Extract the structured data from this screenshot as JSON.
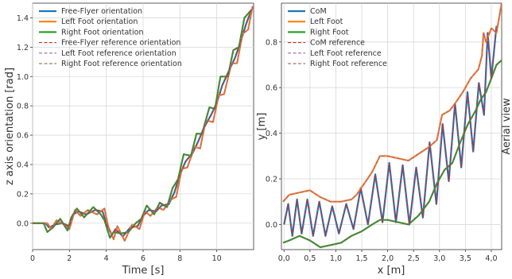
{
  "chart_data": [
    {
      "type": "line",
      "title": "",
      "xlabel": "Time [s]",
      "ylabel": "z axis orientation [rad]",
      "xlim": [
        0,
        12
      ],
      "ylim": [
        -0.18,
        1.5
      ],
      "xticks": [
        0,
        2,
        4,
        6,
        8,
        10
      ],
      "xtick_labels": [
        "0",
        "2",
        "4",
        "6",
        "8",
        "10"
      ],
      "yticks": [
        0.0,
        0.2,
        0.4,
        0.6,
        0.8,
        1.0,
        1.2,
        1.4
      ],
      "ytick_labels": [
        "0.0",
        "0.2",
        "0.4",
        "0.6",
        "0.8",
        "1.0",
        "1.2",
        "1.4"
      ],
      "grid": true,
      "legend": "top-left",
      "series": [
        {
          "name": "Free-Flyer orientation",
          "color": "#1f77b4",
          "dash": "solid",
          "x": [
            0,
            0.7,
            0.9,
            1.2,
            1.6,
            2.0,
            2.2,
            2.5,
            2.9,
            3.4,
            3.8,
            4.0,
            4.3,
            4.5,
            4.9,
            5.3,
            5.7,
            6.0,
            6.3,
            6.7,
            7.0,
            7.4,
            7.7,
            8.0,
            8.3,
            8.7,
            9.0,
            9.3,
            9.7,
            10.0,
            10.3,
            10.7,
            11.0,
            11.3,
            11.6,
            11.9
          ],
          "y": [
            0.0,
            0.0,
            -0.03,
            -0.01,
            0.0,
            -0.02,
            0.06,
            0.08,
            0.06,
            0.09,
            0.08,
            0.0,
            -0.08,
            -0.04,
            -0.09,
            -0.03,
            -0.02,
            0.05,
            0.09,
            0.08,
            0.12,
            0.13,
            0.21,
            0.33,
            0.42,
            0.48,
            0.56,
            0.65,
            0.74,
            0.82,
            0.94,
            1.05,
            1.13,
            1.24,
            1.36,
            1.46
          ]
        },
        {
          "name": "Left Foot orientation",
          "color": "#ff7f0e",
          "dash": "solid",
          "x": [
            0,
            0.8,
            1.0,
            1.3,
            1.7,
            2.0,
            2.3,
            2.6,
            3.0,
            3.5,
            3.9,
            4.1,
            4.4,
            4.6,
            5.0,
            5.4,
            5.8,
            6.1,
            6.4,
            6.8,
            7.1,
            7.5,
            7.8,
            8.1,
            8.4,
            8.8,
            9.1,
            9.4,
            9.8,
            10.1,
            10.4,
            10.8,
            11.1,
            11.4,
            11.7,
            11.95
          ],
          "y": [
            0.0,
            0.0,
            -0.04,
            0.02,
            -0.01,
            -0.04,
            0.09,
            0.05,
            0.09,
            0.06,
            0.1,
            -0.02,
            -0.11,
            -0.02,
            -0.12,
            -0.01,
            -0.04,
            0.08,
            0.05,
            0.11,
            0.09,
            0.16,
            0.18,
            0.37,
            0.38,
            0.52,
            0.51,
            0.7,
            0.69,
            0.87,
            0.88,
            1.09,
            1.09,
            1.29,
            1.32,
            1.48
          ]
        },
        {
          "name": "Right Foot orientation",
          "color": "#2ca02c",
          "dash": "solid",
          "x": [
            0,
            0.6,
            0.8,
            1.1,
            1.5,
            1.9,
            2.1,
            2.4,
            2.8,
            3.3,
            3.7,
            3.9,
            4.2,
            4.4,
            4.8,
            5.2,
            5.6,
            5.9,
            6.2,
            6.6,
            6.9,
            7.3,
            7.6,
            7.9,
            8.2,
            8.6,
            8.9,
            9.2,
            9.6,
            9.9,
            10.2,
            10.6,
            10.9,
            11.2,
            11.5,
            11.85
          ],
          "y": [
            0.0,
            0.0,
            -0.06,
            -0.03,
            0.03,
            -0.05,
            0.04,
            0.1,
            0.04,
            0.11,
            0.06,
            0.02,
            -0.1,
            -0.06,
            -0.07,
            -0.06,
            0.0,
            0.03,
            0.12,
            0.06,
            0.14,
            0.11,
            0.24,
            0.3,
            0.47,
            0.46,
            0.61,
            0.61,
            0.79,
            0.78,
            1.0,
            1.0,
            1.18,
            1.2,
            1.4,
            1.45
          ]
        },
        {
          "name": "Free-Flyer reference orientation",
          "color": "#d62728",
          "dash": "dashed",
          "x": [
            0,
            0.7,
            0.9,
            1.2,
            1.6,
            2.0,
            2.2,
            2.5,
            2.9,
            3.4,
            3.8,
            4.0,
            4.3,
            4.5,
            4.9,
            5.3,
            5.7,
            6.0,
            6.3,
            6.7,
            7.0,
            7.4,
            7.7,
            8.0,
            8.3,
            8.7,
            9.0,
            9.3,
            9.7,
            10.0,
            10.3,
            10.7,
            11.0,
            11.3,
            11.6,
            11.9
          ],
          "y": [
            0.0,
            0.0,
            -0.03,
            -0.01,
            0.0,
            -0.02,
            0.06,
            0.08,
            0.06,
            0.09,
            0.08,
            0.0,
            -0.08,
            -0.04,
            -0.09,
            -0.03,
            -0.02,
            0.05,
            0.09,
            0.08,
            0.12,
            0.13,
            0.21,
            0.33,
            0.42,
            0.48,
            0.56,
            0.65,
            0.74,
            0.82,
            0.94,
            1.05,
            1.13,
            1.24,
            1.36,
            1.46
          ]
        },
        {
          "name": "Left Foot reference orientation",
          "color": "#9467bd",
          "dash": "dashed",
          "x": [
            0,
            0.8,
            1.0,
            1.3,
            1.7,
            2.0,
            2.3,
            2.6,
            3.0,
            3.5,
            3.9,
            4.1,
            4.4,
            4.6,
            5.0,
            5.4,
            5.8,
            6.1,
            6.4,
            6.8,
            7.1,
            7.5,
            7.8,
            8.1,
            8.4,
            8.8,
            9.1,
            9.4,
            9.8,
            10.1,
            10.4,
            10.8,
            11.1,
            11.4,
            11.7,
            11.95
          ],
          "y": [
            0.0,
            0.0,
            -0.04,
            0.02,
            -0.01,
            -0.04,
            0.09,
            0.05,
            0.09,
            0.06,
            0.1,
            -0.02,
            -0.11,
            -0.02,
            -0.12,
            -0.01,
            -0.04,
            0.08,
            0.05,
            0.11,
            0.09,
            0.16,
            0.18,
            0.37,
            0.38,
            0.52,
            0.51,
            0.7,
            0.69,
            0.87,
            0.88,
            1.09,
            1.09,
            1.29,
            1.32,
            1.48
          ]
        },
        {
          "name": "Right Foot reference orientation",
          "color": "#8c564b",
          "dash": "dashed",
          "x": [
            0,
            0.6,
            0.8,
            1.1,
            1.5,
            1.9,
            2.1,
            2.4,
            2.8,
            3.3,
            3.7,
            3.9,
            4.2,
            4.4,
            4.8,
            5.2,
            5.6,
            5.9,
            6.2,
            6.6,
            6.9,
            7.3,
            7.6,
            7.9,
            8.2,
            8.6,
            8.9,
            9.2,
            9.6,
            9.9,
            10.2,
            10.6,
            10.9,
            11.2,
            11.5,
            11.85
          ],
          "y": [
            0.0,
            0.0,
            -0.06,
            -0.03,
            0.03,
            -0.05,
            0.04,
            0.1,
            0.04,
            0.11,
            0.06,
            0.02,
            -0.1,
            -0.06,
            -0.07,
            -0.06,
            0.0,
            0.03,
            0.12,
            0.06,
            0.14,
            0.11,
            0.24,
            0.3,
            0.47,
            0.46,
            0.61,
            0.61,
            0.79,
            0.78,
            1.0,
            1.0,
            1.18,
            1.2,
            1.4,
            1.45
          ]
        }
      ]
    },
    {
      "type": "line",
      "title": "",
      "xlabel": "x [m]",
      "ylabel": "y [m]",
      "side_label": "Aerial view",
      "xlim": [
        -0.05,
        4.2
      ],
      "ylim": [
        -0.11,
        0.97
      ],
      "xticks": [
        0.0,
        0.5,
        1.0,
        1.5,
        2.0,
        2.5,
        3.0,
        3.5,
        4.0
      ],
      "xtick_labels": [
        "0,0",
        "0,5",
        "1,0",
        "1,5",
        "2,0",
        "2,5",
        "3,0",
        "3,5",
        "4,0"
      ],
      "yticks": [
        0.0,
        0.2,
        0.4,
        0.6,
        0.8
      ],
      "ytick_labels": [
        "0.0",
        "0.2",
        "0.4",
        "0.6",
        "0.8"
      ],
      "grid": true,
      "legend": "top-left",
      "series": [
        {
          "name": "CoM",
          "color": "#1f77b4",
          "dash": "solid",
          "x": [
            0.0,
            0.08,
            0.16,
            0.25,
            0.34,
            0.45,
            0.56,
            0.68,
            0.8,
            0.93,
            1.06,
            1.2,
            1.34,
            1.48,
            1.62,
            1.76,
            1.9,
            2.03,
            2.16,
            2.29,
            2.42,
            2.55,
            2.68,
            2.81,
            2.94,
            3.06,
            3.18,
            3.3,
            3.42,
            3.54,
            3.65,
            3.76,
            3.86,
            3.93,
            4.0,
            4.1
          ],
          "y": [
            0.0,
            0.09,
            -0.05,
            0.11,
            -0.04,
            0.11,
            -0.05,
            0.1,
            -0.05,
            0.08,
            -0.04,
            0.09,
            -0.02,
            0.16,
            0.0,
            0.22,
            0.01,
            0.27,
            0.01,
            0.26,
            0.0,
            0.25,
            0.03,
            0.36,
            0.09,
            0.44,
            0.19,
            0.53,
            0.25,
            0.58,
            0.32,
            0.62,
            0.48,
            0.84,
            0.64,
            0.87
          ]
        },
        {
          "name": "Left Foot",
          "color": "#ff7f0e",
          "dash": "solid",
          "x": [
            -0.02,
            0.1,
            0.3,
            0.5,
            0.7,
            0.9,
            1.1,
            1.3,
            1.4,
            1.55,
            1.7,
            1.85,
            2.0,
            2.2,
            2.4,
            2.6,
            2.8,
            2.95,
            3.05,
            3.2,
            3.3,
            3.45,
            3.6,
            3.75,
            3.82,
            3.85,
            3.9,
            4.0,
            4.1,
            4.2
          ],
          "y": [
            0.1,
            0.13,
            0.14,
            0.15,
            0.12,
            0.1,
            0.1,
            0.11,
            0.13,
            0.18,
            0.23,
            0.3,
            0.3,
            0.29,
            0.28,
            0.31,
            0.34,
            0.37,
            0.48,
            0.5,
            0.53,
            0.58,
            0.64,
            0.68,
            0.74,
            0.84,
            0.8,
            0.86,
            0.84,
            0.97
          ]
        },
        {
          "name": "Right Foot",
          "color": "#2ca02c",
          "dash": "solid",
          "x": [
            -0.02,
            0.1,
            0.3,
            0.5,
            0.7,
            0.9,
            1.1,
            1.3,
            1.5,
            1.7,
            1.85,
            2.0,
            2.2,
            2.4,
            2.6,
            2.8,
            2.95,
            3.1,
            3.25,
            3.4,
            3.55,
            3.7,
            3.8,
            3.9,
            4.0,
            4.1,
            4.2
          ],
          "y": [
            -0.08,
            -0.07,
            -0.05,
            -0.07,
            -0.1,
            -0.09,
            -0.08,
            -0.05,
            -0.03,
            0.0,
            0.02,
            0.02,
            0.01,
            0.0,
            0.04,
            0.1,
            0.18,
            0.24,
            0.27,
            0.36,
            0.44,
            0.5,
            0.55,
            0.58,
            0.64,
            0.7,
            0.72
          ]
        },
        {
          "name": "CoM reference",
          "color": "#d62728",
          "dash": "dashed",
          "x": [
            0.0,
            0.08,
            0.16,
            0.25,
            0.34,
            0.45,
            0.56,
            0.68,
            0.8,
            0.93,
            1.06,
            1.2,
            1.34,
            1.48,
            1.62,
            1.76,
            1.9,
            2.03,
            2.16,
            2.29,
            2.42,
            2.55,
            2.68,
            2.81,
            2.94,
            3.06,
            3.18,
            3.3,
            3.42,
            3.54,
            3.65,
            3.76,
            3.86,
            3.93,
            4.0,
            4.1
          ],
          "y": [
            0.0,
            0.09,
            -0.05,
            0.11,
            -0.04,
            0.11,
            -0.05,
            0.1,
            -0.05,
            0.08,
            -0.04,
            0.09,
            -0.02,
            0.16,
            0.0,
            0.22,
            0.01,
            0.27,
            0.01,
            0.26,
            0.0,
            0.25,
            0.03,
            0.36,
            0.09,
            0.44,
            0.19,
            0.53,
            0.25,
            0.58,
            0.32,
            0.62,
            0.48,
            0.84,
            0.64,
            0.87
          ]
        },
        {
          "name": "Left Foot reference",
          "color": "#9467bd",
          "dash": "dashed",
          "x": [
            -0.02,
            0.1,
            0.3,
            0.5,
            0.7,
            0.9,
            1.1,
            1.3,
            1.4,
            1.55,
            1.7,
            1.85,
            2.0,
            2.2,
            2.4,
            2.6,
            2.8,
            2.95,
            3.05,
            3.2,
            3.3,
            3.45,
            3.6,
            3.75,
            3.82,
            3.85,
            3.9,
            4.0,
            4.1,
            4.2
          ],
          "y": [
            0.1,
            0.13,
            0.14,
            0.15,
            0.12,
            0.1,
            0.1,
            0.11,
            0.13,
            0.18,
            0.23,
            0.3,
            0.3,
            0.29,
            0.28,
            0.31,
            0.34,
            0.37,
            0.48,
            0.5,
            0.53,
            0.58,
            0.64,
            0.68,
            0.74,
            0.84,
            0.8,
            0.86,
            0.84,
            0.97
          ]
        },
        {
          "name": "Right Foot reference",
          "color": "#8c564b",
          "dash": "dashed",
          "x": [
            -0.02,
            0.1,
            0.3,
            0.5,
            0.7,
            0.9,
            1.1,
            1.3,
            1.5,
            1.7,
            1.85,
            2.0,
            2.2,
            2.4,
            2.6,
            2.8,
            2.95,
            3.1,
            3.25,
            3.4,
            3.55,
            3.7,
            3.8,
            3.9,
            4.0,
            4.1,
            4.2
          ],
          "y": [
            -0.08,
            -0.07,
            -0.05,
            -0.07,
            -0.1,
            -0.09,
            -0.08,
            -0.05,
            -0.03,
            0.0,
            0.02,
            0.02,
            0.01,
            0.0,
            0.04,
            0.1,
            0.18,
            0.24,
            0.27,
            0.36,
            0.44,
            0.5,
            0.55,
            0.58,
            0.64,
            0.7,
            0.72
          ]
        }
      ]
    }
  ]
}
